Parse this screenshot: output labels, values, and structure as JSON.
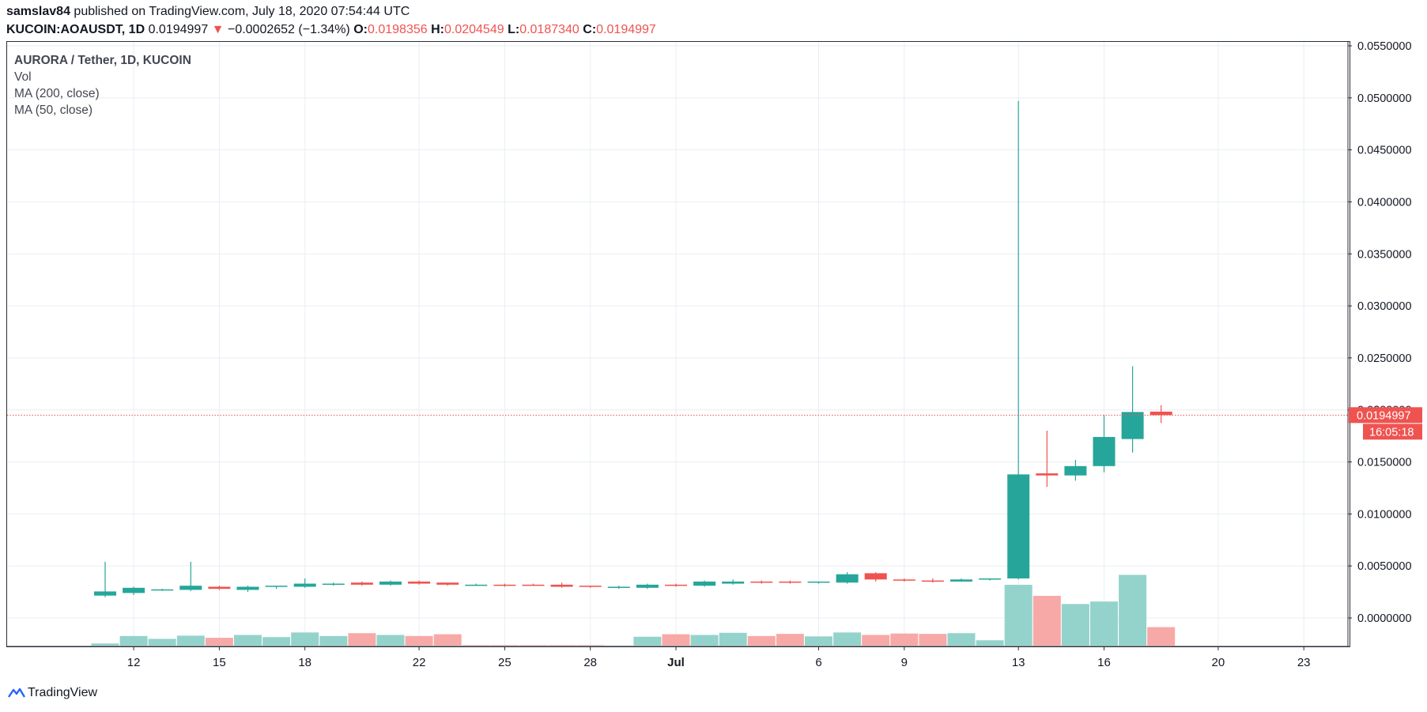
{
  "header": {
    "publisher": "samslav84",
    "published_text": " published on TradingView.com, July 18, 2020 07:54:44 UTC",
    "symbol": "KUCOIN:AOAUSDT, 1D",
    "last": "0.0194997",
    "change": "−0.0002652 (−1.34%)",
    "o_label": "O:",
    "o_val": "0.0198356",
    "h_label": "H:",
    "h_val": "0.0204549",
    "l_label": "L:",
    "l_val": "0.0187340",
    "c_label": "C:",
    "c_val": "0.0194997"
  },
  "legend": {
    "title": "AURORA / Tether, 1D, KUCOIN",
    "vol": "Vol",
    "ma200": "MA (200, close)",
    "ma50": "MA (50, close)"
  },
  "price_badge": "0.0194997",
  "countdown_badge": "16:05:18",
  "footer": {
    "brand": "TradingView"
  },
  "colors": {
    "up": "#26a69a",
    "down": "#ef5350",
    "vol_up": "#93d3cc",
    "vol_down": "#f7a9a7",
    "grid": "#e9eef3"
  },
  "chart_data": {
    "type": "candlestick",
    "y_ticks": [
      "0.0550000",
      "0.0500000",
      "0.0450000",
      "0.0400000",
      "0.0350000",
      "0.0300000",
      "0.0250000",
      "0.0200000",
      "0.0150000",
      "0.0100000",
      "0.0050000",
      "0.0000000"
    ],
    "ylim": [
      -0.0028,
      0.057
    ],
    "x_ticks": [
      {
        "label": "12",
        "day": 1
      },
      {
        "label": "15",
        "day": 4
      },
      {
        "label": "18",
        "day": 7
      },
      {
        "label": "22",
        "day": 11
      },
      {
        "label": "25",
        "day": 14
      },
      {
        "label": "28",
        "day": 17
      },
      {
        "label": "Jul",
        "day": 20,
        "bold": true
      },
      {
        "label": "6",
        "day": 25
      },
      {
        "label": "9",
        "day": 28
      },
      {
        "label": "13",
        "day": 32
      },
      {
        "label": "16",
        "day": 35
      },
      {
        "label": "20",
        "day": 39
      },
      {
        "label": "23",
        "day": 42
      }
    ],
    "candles": [
      {
        "day": 0,
        "o": 0.00215,
        "h": 0.0054,
        "l": 0.002,
        "c": 0.00255
      },
      {
        "day": 1,
        "o": 0.0024,
        "h": 0.003,
        "l": 0.0022,
        "c": 0.0029
      },
      {
        "day": 2,
        "o": 0.0027,
        "h": 0.0028,
        "l": 0.0026,
        "c": 0.00275
      },
      {
        "day": 3,
        "o": 0.0027,
        "h": 0.0054,
        "l": 0.0026,
        "c": 0.0031
      },
      {
        "day": 4,
        "o": 0.003,
        "h": 0.0031,
        "l": 0.0027,
        "c": 0.0028
      },
      {
        "day": 5,
        "o": 0.0027,
        "h": 0.0031,
        "l": 0.0025,
        "c": 0.003
      },
      {
        "day": 6,
        "o": 0.003,
        "h": 0.0031,
        "l": 0.0028,
        "c": 0.0031
      },
      {
        "day": 7,
        "o": 0.003,
        "h": 0.0038,
        "l": 0.0029,
        "c": 0.0033
      },
      {
        "day": 8,
        "o": 0.0032,
        "h": 0.0034,
        "l": 0.0031,
        "c": 0.0033
      },
      {
        "day": 9,
        "o": 0.0034,
        "h": 0.0035,
        "l": 0.0031,
        "c": 0.0032
      },
      {
        "day": 10,
        "o": 0.0032,
        "h": 0.0036,
        "l": 0.0031,
        "c": 0.0035
      },
      {
        "day": 11,
        "o": 0.0035,
        "h": 0.0036,
        "l": 0.0032,
        "c": 0.0033
      },
      {
        "day": 12,
        "o": 0.0034,
        "h": 0.0034,
        "l": 0.0031,
        "c": 0.0032
      },
      {
        "day": 13,
        "o": 0.0032,
        "h": 0.0033,
        "l": 0.0031,
        "c": 0.0032
      },
      {
        "day": 14,
        "o": 0.0032,
        "h": 0.0033,
        "l": 0.003,
        "c": 0.0031
      },
      {
        "day": 15,
        "o": 0.0032,
        "h": 0.0033,
        "l": 0.0031,
        "c": 0.0031
      },
      {
        "day": 16,
        "o": 0.0032,
        "h": 0.0034,
        "l": 0.0029,
        "c": 0.003
      },
      {
        "day": 17,
        "o": 0.0031,
        "h": 0.0031,
        "l": 0.0029,
        "c": 0.003
      },
      {
        "day": 18,
        "o": 0.003,
        "h": 0.0031,
        "l": 0.0028,
        "c": 0.003
      },
      {
        "day": 19,
        "o": 0.0029,
        "h": 0.0033,
        "l": 0.0028,
        "c": 0.0032
      },
      {
        "day": 20,
        "o": 0.0032,
        "h": 0.0033,
        "l": 0.003,
        "c": 0.0031
      },
      {
        "day": 21,
        "o": 0.0031,
        "h": 0.0036,
        "l": 0.003,
        "c": 0.0035
      },
      {
        "day": 22,
        "o": 0.0033,
        "h": 0.0037,
        "l": 0.0032,
        "c": 0.0035
      },
      {
        "day": 23,
        "o": 0.0035,
        "h": 0.0036,
        "l": 0.0033,
        "c": 0.0034
      },
      {
        "day": 24,
        "o": 0.0035,
        "h": 0.0036,
        "l": 0.0033,
        "c": 0.0034
      },
      {
        "day": 25,
        "o": 0.0034,
        "h": 0.0035,
        "l": 0.0033,
        "c": 0.0035
      },
      {
        "day": 26,
        "o": 0.0034,
        "h": 0.0044,
        "l": 0.0033,
        "c": 0.0042
      },
      {
        "day": 27,
        "o": 0.0043,
        "h": 0.0044,
        "l": 0.0035,
        "c": 0.0037
      },
      {
        "day": 28,
        "o": 0.0037,
        "h": 0.0038,
        "l": 0.0035,
        "c": 0.0036
      },
      {
        "day": 29,
        "o": 0.0036,
        "h": 0.0038,
        "l": 0.0034,
        "c": 0.0035
      },
      {
        "day": 30,
        "o": 0.0035,
        "h": 0.0038,
        "l": 0.0035,
        "c": 0.0037
      },
      {
        "day": 31,
        "o": 0.0037,
        "h": 0.0038,
        "l": 0.0036,
        "c": 0.0038
      },
      {
        "day": 32,
        "o": 0.0038,
        "h": 0.0497,
        "l": 0.0037,
        "c": 0.0138
      },
      {
        "day": 33,
        "o": 0.0139,
        "h": 0.018,
        "l": 0.0126,
        "c": 0.0137
      },
      {
        "day": 34,
        "o": 0.0137,
        "h": 0.0152,
        "l": 0.0132,
        "c": 0.0146
      },
      {
        "day": 35,
        "o": 0.0146,
        "h": 0.0195,
        "l": 0.014,
        "c": 0.0174
      },
      {
        "day": 36,
        "o": 0.0172,
        "h": 0.0242,
        "l": 0.0159,
        "c": 0.0198
      },
      {
        "day": 37,
        "o": 0.0198356,
        "h": 0.0204549,
        "l": 0.018734,
        "c": 0.0194997
      }
    ],
    "volume": [
      {
        "day": 0,
        "v": 0.06,
        "up": true
      },
      {
        "day": 1,
        "v": 0.27,
        "up": true
      },
      {
        "day": 2,
        "v": 0.19,
        "up": true
      },
      {
        "day": 3,
        "v": 0.28,
        "up": true
      },
      {
        "day": 4,
        "v": 0.22,
        "up": false
      },
      {
        "day": 5,
        "v": 0.3,
        "up": true
      },
      {
        "day": 6,
        "v": 0.24,
        "up": true
      },
      {
        "day": 7,
        "v": 0.37,
        "up": true
      },
      {
        "day": 8,
        "v": 0.27,
        "up": true
      },
      {
        "day": 9,
        "v": 0.35,
        "up": false
      },
      {
        "day": 10,
        "v": 0.3,
        "up": true
      },
      {
        "day": 11,
        "v": 0.27,
        "up": false
      },
      {
        "day": 12,
        "v": 0.32,
        "up": false
      },
      {
        "day": 13,
        "v": 0.015,
        "up": false
      },
      {
        "day": 14,
        "v": 0.015,
        "up": false
      },
      {
        "day": 15,
        "v": 0.015,
        "up": false
      },
      {
        "day": 16,
        "v": 0.015,
        "up": false
      },
      {
        "day": 17,
        "v": 0.015,
        "up": false
      },
      {
        "day": 18,
        "v": 0.005,
        "up": true
      },
      {
        "day": 19,
        "v": 0.25,
        "up": true
      },
      {
        "day": 20,
        "v": 0.32,
        "up": false
      },
      {
        "day": 21,
        "v": 0.3,
        "up": true
      },
      {
        "day": 22,
        "v": 0.36,
        "up": true
      },
      {
        "day": 23,
        "v": 0.27,
        "up": false
      },
      {
        "day": 24,
        "v": 0.33,
        "up": false
      },
      {
        "day": 25,
        "v": 0.26,
        "up": true
      },
      {
        "day": 26,
        "v": 0.37,
        "up": true
      },
      {
        "day": 27,
        "v": 0.3,
        "up": false
      },
      {
        "day": 28,
        "v": 0.34,
        "up": false
      },
      {
        "day": 29,
        "v": 0.33,
        "up": false
      },
      {
        "day": 30,
        "v": 0.35,
        "up": true
      },
      {
        "day": 31,
        "v": 0.15,
        "up": true
      },
      {
        "day": 32,
        "v": 1.71,
        "up": true
      },
      {
        "day": 33,
        "v": 1.4,
        "up": false
      },
      {
        "day": 34,
        "v": 1.17,
        "up": true
      },
      {
        "day": 35,
        "v": 1.24,
        "up": true
      },
      {
        "day": 36,
        "v": 1.99,
        "up": true
      },
      {
        "day": 37,
        "v": 0.52,
        "up": false
      }
    ]
  }
}
